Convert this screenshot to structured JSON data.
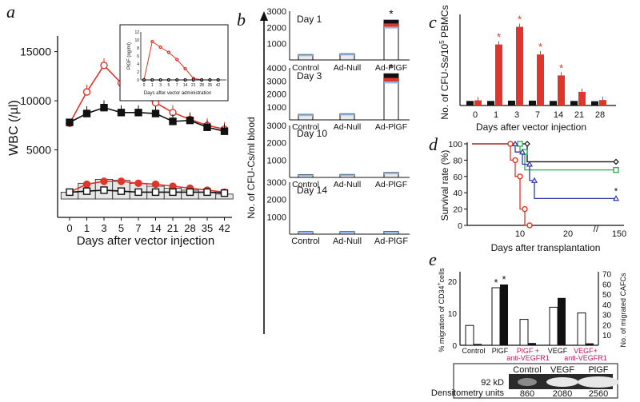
{
  "colors": {
    "red": "#e0352b",
    "black": "#111111",
    "white": "#ffffff",
    "blue": "#2b3aa6",
    "green": "#2fae55",
    "gray": "#cfcfcf",
    "lightblue": "#8fb8e8",
    "crimson": "#c2185b"
  },
  "chart_data": [
    {
      "panel": "a",
      "type": "line",
      "xlabel": "Days after vector injection",
      "ylabel": "WBC (/µl)",
      "x": [
        0,
        1,
        3,
        5,
        7,
        14,
        21,
        28,
        35,
        42
      ],
      "ylim": [
        0,
        17000
      ],
      "yticks": [
        5000,
        10000,
        15000
      ],
      "series": [
        {
          "marker": "open-circle",
          "color": "red",
          "values": [
            7700,
            10900,
            13600,
            11800,
            10600,
            9800,
            8800,
            8100,
            7500,
            7100
          ]
        },
        {
          "marker": "filled-square",
          "color": "black",
          "values": [
            7800,
            8700,
            9300,
            8800,
            8800,
            8700,
            7900,
            8000,
            7300,
            6900
          ]
        },
        {
          "marker": "filled-circle",
          "color": "red",
          "values": [
            700,
            1500,
            1800,
            1800,
            1600,
            1500,
            1300,
            1100,
            900,
            700
          ]
        },
        {
          "marker": "open-square",
          "color": "black",
          "values": [
            700,
            800,
            900,
            800,
            700,
            700,
            700,
            700,
            700,
            600
          ]
        }
      ],
      "bars": [
        700,
        1600,
        2000,
        1900,
        1600,
        1300,
        1100,
        900,
        700,
        500
      ],
      "inset": {
        "xlabel": "Days after vector administration",
        "ylabel": "PlGF (ng/ml)",
        "ylim": [
          0,
          12
        ],
        "yticks": [
          0,
          2,
          4,
          6,
          8,
          10,
          12
        ],
        "x": [
          0,
          1,
          3,
          5,
          7,
          14,
          21,
          28,
          35,
          42
        ],
        "series": [
          {
            "color": "red",
            "values": [
              0,
              9.6,
              8.2,
              6.9,
              5.1,
              2.8,
              0.4,
              0,
              0,
              0
            ]
          },
          {
            "color": "black",
            "values": [
              0,
              0,
              0,
              0,
              0,
              0,
              0,
              0,
              0,
              0
            ]
          }
        ]
      }
    },
    {
      "panel": "b",
      "type": "bar",
      "ylabel": "No. of CFU-Cs/ml blood",
      "categories": [
        "Control",
        "Ad-Null",
        "Ad-PlGF"
      ],
      "subplots": [
        {
          "label": "Day 1",
          "ylim": [
            0,
            3000
          ],
          "yticks": [
            1000,
            2000,
            3000
          ],
          "values": [
            330,
            380,
            2450
          ],
          "star": 2
        },
        {
          "label": "Day 3",
          "ylim": [
            0,
            4000
          ],
          "yticks": [
            1000,
            2000,
            3000,
            4000
          ],
          "values": [
            420,
            470,
            3550
          ],
          "star": 2
        },
        {
          "label": "Day 10",
          "ylim": [
            0,
            3000
          ],
          "yticks": [
            1000,
            2000,
            3000
          ],
          "values": [
            160,
            170,
            280
          ]
        },
        {
          "label": "Day 14",
          "ylim": [
            0,
            3000
          ],
          "yticks": [
            1000,
            2000,
            3000
          ],
          "values": [
            150,
            150,
            160
          ]
        }
      ]
    },
    {
      "panel": "c",
      "type": "bar",
      "xlabel": "Days after vector injection",
      "ylabel": "No. of CFU-Ss/10",
      "ylabel_sup": "5",
      "ylabel_end": "PBMCs",
      "categories": [
        "0",
        "1",
        "3",
        "7",
        "14",
        "21",
        "28"
      ],
      "ylim": [
        0,
        30
      ],
      "series": [
        {
          "color": "black",
          "values": [
            1.5,
            1.5,
            1.6,
            1.6,
            1.5,
            1.5,
            1.4
          ]
        },
        {
          "color": "red",
          "values": [
            1.7,
            20.1,
            25.9,
            16.8,
            9.9,
            4.5,
            1.8
          ]
        }
      ],
      "stars": [
        1,
        2,
        3,
        4
      ]
    },
    {
      "panel": "d",
      "type": "line",
      "xlabel": "Days after transplantation",
      "ylabel": "Survival rate (%)",
      "yticks": [
        0,
        20,
        40,
        60,
        80,
        100
      ],
      "xticks": [
        "10",
        "20",
        "150"
      ],
      "break_mark": "//",
      "series": [
        {
          "color": "black",
          "marker": "diamond",
          "points": [
            [
              0,
              100
            ],
            [
              11.5,
              100
            ],
            [
              11.5,
              78
            ],
            [
              150,
              78
            ]
          ]
        },
        {
          "color": "green",
          "marker": "square",
          "points": [
            [
              0,
              100
            ],
            [
              10,
              100
            ],
            [
              10,
              90
            ],
            [
              11,
              90
            ],
            [
              11,
              68
            ],
            [
              150,
              68
            ]
          ]
        },
        {
          "color": "blue",
          "marker": "triangle",
          "points": [
            [
              0,
              100
            ],
            [
              9,
              100
            ],
            [
              9,
              90
            ],
            [
              10.5,
              90
            ],
            [
              10.5,
              75
            ],
            [
              12,
              75
            ],
            [
              12,
              55
            ],
            [
              13,
              55
            ],
            [
              13,
              33
            ],
            [
              150,
              33
            ]
          ],
          "star": true
        },
        {
          "color": "red",
          "marker": "circle",
          "points": [
            [
              0,
              100
            ],
            [
              8,
              100
            ],
            [
              8,
              80
            ],
            [
              9,
              80
            ],
            [
              9,
              60
            ],
            [
              10,
              60
            ],
            [
              10,
              20
            ],
            [
              11,
              20
            ],
            [
              11,
              0
            ],
            [
              12,
              0
            ]
          ]
        }
      ]
    },
    {
      "panel": "e",
      "type": "bar",
      "ylabel_left": "% migration of CD34",
      "ylabel_left_sup": "+",
      "ylabel_left_end": "cells",
      "ylabel_right": "No. of migrated CAFCs",
      "left_yticks": [
        10,
        20
      ],
      "right_yticks": [
        10,
        20,
        30,
        40,
        50,
        60,
        70
      ],
      "left_ylim": [
        0,
        23
      ],
      "right_ylim": [
        0,
        72
      ],
      "categories": [
        {
          "label": "Control",
          "lines": [
            "Control"
          ],
          "color": "black"
        },
        {
          "label": "PlGF",
          "lines": [
            "PlGF"
          ],
          "color": "black"
        },
        {
          "label": "PlGF + anti-VEGFR1",
          "lines": [
            "PlGF +",
            "anti-VEGFR1"
          ],
          "color": "crimson"
        },
        {
          "label": "VEGF",
          "lines": [
            "VEGF"
          ],
          "color": "black"
        },
        {
          "label": "VEGF+ anti-VEGFR1",
          "lines": [
            "VEGF+",
            "anti-VEGFR1"
          ],
          "color": "crimson"
        }
      ],
      "open_values": [
        6.2,
        18.0,
        8.1,
        11.9,
        10.1
      ],
      "filled_values": [
        0.4,
        19.0,
        0.7,
        14.8,
        0.6
      ],
      "stars": [
        1
      ],
      "blot": {
        "lanes": [
          "Control",
          "VEGF",
          "PlGF"
        ],
        "size_label": "92 kD",
        "densitometry_label": "Densitometry units",
        "densitometry_values": [
          "860",
          "2080",
          "2560"
        ]
      }
    }
  ],
  "panel_letters": {
    "a": "a",
    "b": "b",
    "c": "c",
    "d": "d",
    "e": "e"
  },
  "star_symbol": "*"
}
